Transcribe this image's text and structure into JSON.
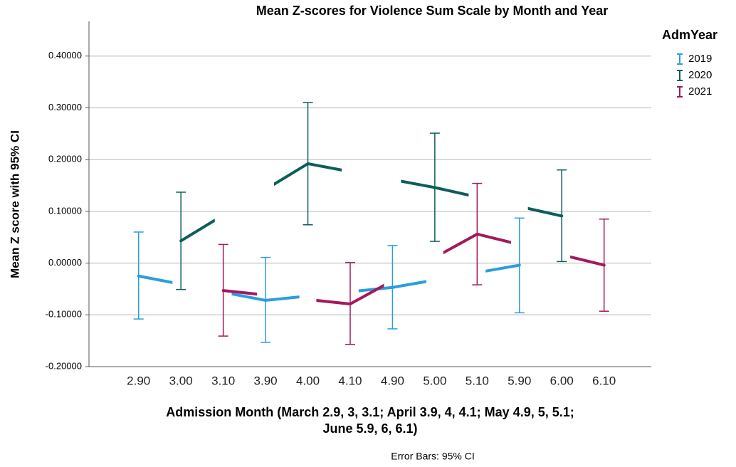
{
  "chart_data": {
    "type": "errorbar-line",
    "title": "Mean Z-scores for Violence Sum Scale by Month and Year",
    "x_label": [
      "Admission Month (March 2.9, 3, 3.1; April 3.9, 4, 4.1; May 4.9, 5, 5.1;",
      "June 5.9, 6, 6.1)"
    ],
    "y_label": "Mean Z score with 95% CI",
    "footnote": "Error Bars: 95% CI",
    "legend_title": "AdmYear",
    "legend_position": "right",
    "grid": true,
    "categories": [
      "2.90",
      "3.00",
      "3.10",
      "3.90",
      "4.00",
      "4.10",
      "4.90",
      "5.00",
      "5.10",
      "5.90",
      "6.00",
      "6.10"
    ],
    "ylim": [
      -0.2,
      0.467
    ],
    "yticks": [
      {
        "value": -0.2,
        "label": "-0.20000"
      },
      {
        "value": -0.1,
        "label": "-0.10000"
      },
      {
        "value": 0,
        "label": "0.00000"
      },
      {
        "value": 0.1,
        "label": "0.10000"
      },
      {
        "value": 0.2,
        "label": "0.20000"
      },
      {
        "value": 0.3,
        "label": "0.30000"
      },
      {
        "value": 0.4,
        "label": "0.40000"
      }
    ],
    "series": [
      {
        "name": "2019",
        "color": "#2a9de0",
        "values": [
          -0.025,
          null,
          null,
          -0.072,
          null,
          null,
          -0.047,
          null,
          null,
          -0.004,
          null,
          null
        ],
        "ci_low": [
          -0.108,
          null,
          null,
          -0.153,
          null,
          null,
          -0.127,
          null,
          null,
          -0.096,
          null,
          null
        ],
        "ci_high": [
          0.06,
          null,
          null,
          0.011,
          null,
          null,
          0.034,
          null,
          null,
          0.087,
          null,
          null
        ]
      },
      {
        "name": "2020",
        "color": "#0b5e5a",
        "values": [
          null,
          0.043,
          null,
          null,
          0.192,
          null,
          null,
          0.146,
          null,
          null,
          0.091,
          null
        ],
        "ci_low": [
          null,
          -0.051,
          null,
          null,
          0.074,
          null,
          null,
          0.042,
          null,
          null,
          0.003,
          null
        ],
        "ci_high": [
          null,
          0.137,
          null,
          null,
          0.31,
          null,
          null,
          0.251,
          null,
          null,
          0.18,
          null
        ]
      },
      {
        "name": "2021",
        "color": "#a3195b",
        "values": [
          null,
          null,
          -0.053,
          null,
          null,
          -0.079,
          null,
          null,
          0.056,
          null,
          null,
          -0.004
        ],
        "ci_low": [
          null,
          null,
          -0.141,
          null,
          null,
          -0.157,
          null,
          null,
          -0.042,
          null,
          null,
          -0.093
        ],
        "ci_high": [
          null,
          null,
          0.036,
          null,
          null,
          0.001,
          null,
          null,
          0.154,
          null,
          null,
          0.085
        ]
      }
    ]
  }
}
